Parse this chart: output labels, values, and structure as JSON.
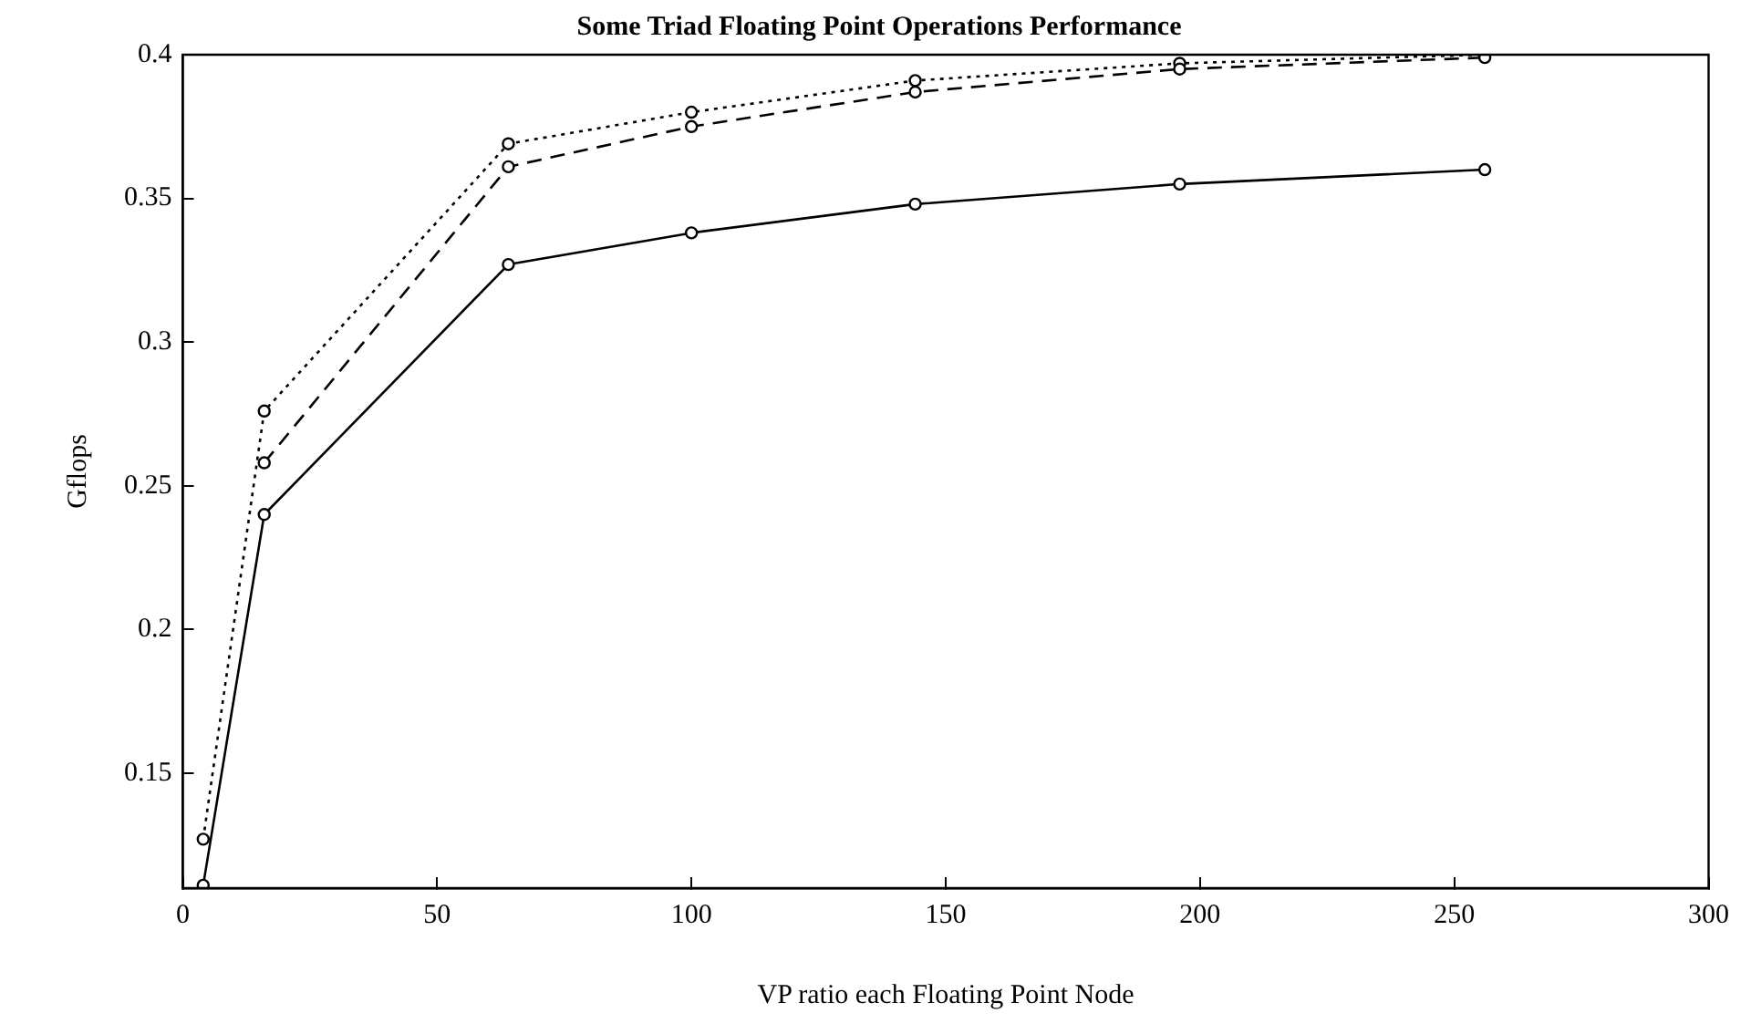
{
  "chart_data": {
    "type": "line",
    "title": "Some Triad Floating Point Operations Performance",
    "xlabel": "VP ratio each Floating Point Node",
    "ylabel": "Gflops",
    "x": [
      4,
      16,
      64,
      100,
      144,
      196,
      256
    ],
    "series": [
      {
        "color": "#000000",
        "line_style": "solid",
        "values": [
          0.111,
          0.24,
          0.327,
          0.338,
          0.348,
          0.355,
          0.36
        ]
      },
      {
        "color": "#000000",
        "line_style": "dashed",
        "values": [
          null,
          0.258,
          0.361,
          0.375,
          0.387,
          0.395,
          0.399
        ]
      },
      {
        "color": "#000000",
        "line_style": "dotted",
        "values": [
          0.127,
          0.276,
          0.369,
          0.38,
          0.391,
          0.397,
          0.4
        ]
      }
    ],
    "xlim": [
      0,
      300
    ],
    "xticks": [
      0,
      50,
      100,
      150,
      200,
      250,
      300
    ],
    "ylim": [
      0.11,
      0.4
    ],
    "yticks": [
      0.15,
      0.2,
      0.25,
      0.3,
      0.35,
      0.4
    ],
    "grid": false,
    "legend": false,
    "marker": "circle"
  }
}
